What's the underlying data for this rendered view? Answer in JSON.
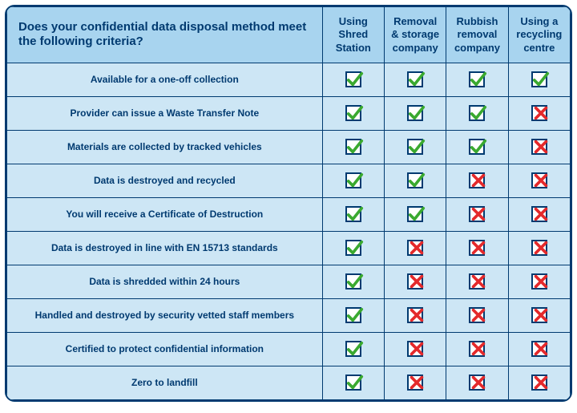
{
  "colors": {
    "border": "#003a70",
    "header_bg": "#a8d4ef",
    "row_bg": "#cde6f5",
    "text": "#003a70",
    "check": "#3aa92f",
    "cross": "#e4292b",
    "box_border": "#003a70",
    "box_bg": "#ffffff"
  },
  "header": {
    "question": "Does your confidential data disposal method meet the following criteria?",
    "providers": [
      "Using Shred Station",
      "Removal & storage company",
      "Rubbish removal company",
      "Using a recycling centre"
    ]
  },
  "rows": [
    {
      "label": "Available for a one-off collection",
      "vals": [
        true,
        true,
        true,
        true
      ]
    },
    {
      "label": "Provider can issue a Waste Transfer Note",
      "vals": [
        true,
        true,
        true,
        false
      ]
    },
    {
      "label": "Materials are collected by tracked vehicles",
      "vals": [
        true,
        true,
        true,
        false
      ]
    },
    {
      "label": "Data is destroyed and recycled",
      "vals": [
        true,
        true,
        false,
        false
      ]
    },
    {
      "label": "You will receive a Certificate of Destruction",
      "vals": [
        true,
        true,
        false,
        false
      ]
    },
    {
      "label": "Data is destroyed in line with EN 15713 standards",
      "vals": [
        true,
        false,
        false,
        false
      ]
    },
    {
      "label": "Data is shredded within 24 hours",
      "vals": [
        true,
        false,
        false,
        false
      ]
    },
    {
      "label": "Handled and destroyed by security vetted staff members",
      "vals": [
        true,
        false,
        false,
        false
      ]
    },
    {
      "label": "Certified to protect confidential information",
      "vals": [
        true,
        false,
        false,
        false
      ]
    },
    {
      "label": "Zero to landfill",
      "vals": [
        true,
        false,
        false,
        false
      ]
    }
  ]
}
